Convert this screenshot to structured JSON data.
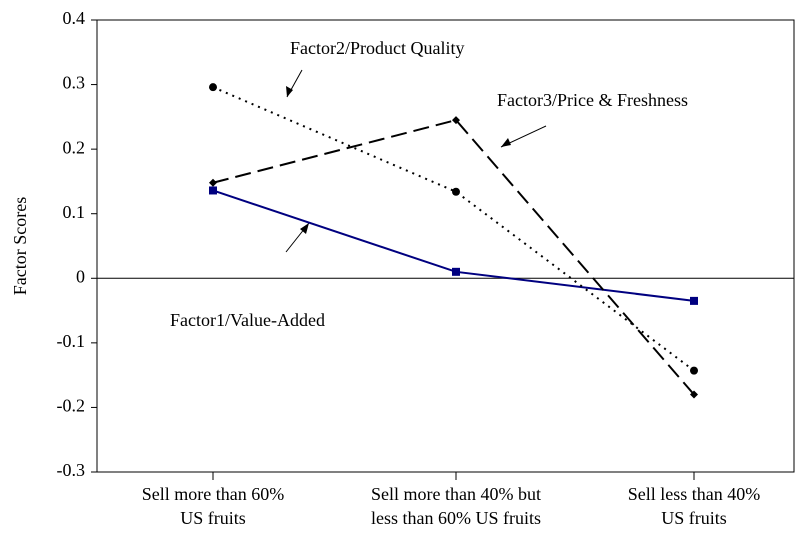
{
  "chart_data": {
    "type": "line",
    "y_label": "Factor Scores",
    "categories": [
      "Sell more than 60%\nUS fruits",
      "Sell more than 40% but\nless than 60% US fruits",
      "Sell less than 40%\nUS fruits"
    ],
    "series": [
      {
        "name": "Factor1/Value-Added",
        "color": "#000080",
        "style": "solid",
        "marker": "square",
        "values": [
          0.136,
          0.01,
          -0.035
        ]
      },
      {
        "name": "Factor2/Product Quality",
        "color": "#000000",
        "style": "dotted",
        "marker": "circle",
        "values": [
          0.296,
          0.134,
          -0.143
        ]
      },
      {
        "name": "Factor3/Price & Freshness",
        "color": "#000000",
        "style": "dashed",
        "marker": "diamond",
        "values": [
          0.148,
          0.245,
          -0.18
        ]
      }
    ],
    "ylim": [
      -0.3,
      0.4
    ],
    "yticks": [
      -0.3,
      -0.2,
      -0.1,
      0,
      0.1,
      0.2,
      0.3,
      0.4
    ]
  }
}
